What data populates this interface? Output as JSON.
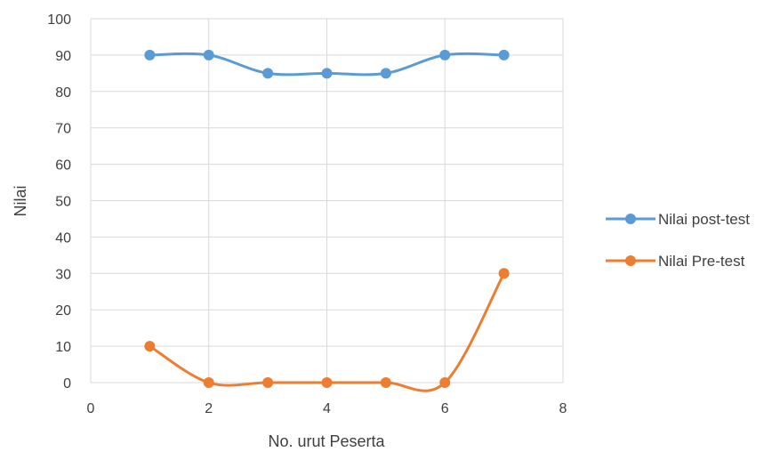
{
  "chart_data": {
    "type": "scatter",
    "title": "",
    "xlabel": "No. urut Peserta",
    "ylabel": "Nilai",
    "xlim": [
      0,
      8
    ],
    "ylim": [
      0,
      100
    ],
    "x_ticks": [
      0,
      2,
      4,
      6,
      8
    ],
    "y_ticks": [
      0,
      10,
      20,
      30,
      40,
      50,
      60,
      70,
      80,
      90,
      100
    ],
    "grid": true,
    "smooth_lines": true,
    "legend_position": "right",
    "series": [
      {
        "name": "Nilai post-test",
        "color": "#5b9bd5",
        "x": [
          1,
          2,
          3,
          4,
          5,
          6,
          7
        ],
        "y": [
          90,
          90,
          85,
          85,
          85,
          90,
          90
        ]
      },
      {
        "name": "Nilai Pre-test",
        "color": "#ed7d31",
        "x": [
          1,
          2,
          3,
          4,
          5,
          6,
          7
        ],
        "y": [
          10,
          0,
          0,
          0,
          0,
          0,
          30
        ]
      }
    ]
  }
}
